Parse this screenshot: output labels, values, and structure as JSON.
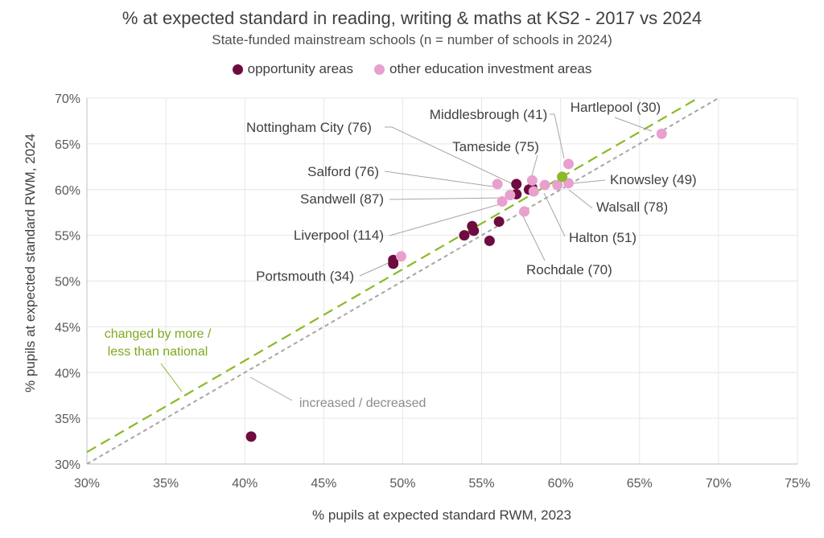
{
  "chart_data": {
    "type": "scatter",
    "title": "% at expected standard in reading, writing & maths at KS2 - 2017 vs 2024",
    "subtitle": "State-funded mainstream schools (n = number of schools in 2024)",
    "xlabel": "% pupils at expected standard RWM, 2023",
    "ylabel": "% pupils at expected standard RWM, 2024",
    "xlim": [
      30,
      75
    ],
    "ylim": [
      30,
      70
    ],
    "x_ticks": [
      30,
      35,
      40,
      45,
      50,
      55,
      60,
      65,
      70,
      75
    ],
    "y_ticks": [
      30,
      35,
      40,
      45,
      50,
      55,
      60,
      65,
      70
    ],
    "x_tick_labels": [
      "30%",
      "35%",
      "40%",
      "45%",
      "50%",
      "55%",
      "60%",
      "65%",
      "70%",
      "75%"
    ],
    "y_tick_labels": [
      "30%",
      "35%",
      "40%",
      "45%",
      "50%",
      "55%",
      "60%",
      "65%",
      "70%"
    ],
    "grid": true,
    "legend_position": "top",
    "series": [
      {
        "name": "opportunity areas",
        "color": "#6e0b3f",
        "points": [
          {
            "x": 57.2,
            "y": 60.6
          },
          {
            "x": 58.0,
            "y": 60.0
          },
          {
            "x": 58.2,
            "y": 60.2
          },
          {
            "x": 57.2,
            "y": 59.5
          },
          {
            "x": 56.1,
            "y": 56.5
          },
          {
            "x": 54.4,
            "y": 56.0
          },
          {
            "x": 54.5,
            "y": 55.5
          },
          {
            "x": 53.9,
            "y": 55.0
          },
          {
            "x": 55.5,
            "y": 54.4
          },
          {
            "x": 49.4,
            "y": 52.3
          },
          {
            "x": 49.4,
            "y": 51.9
          },
          {
            "x": 40.4,
            "y": 33.0
          }
        ]
      },
      {
        "name": "other education investment areas",
        "color": "#e8a0cf",
        "points": [
          {
            "x": 66.4,
            "y": 66.1
          },
          {
            "x": 60.5,
            "y": 62.8
          },
          {
            "x": 58.2,
            "y": 61.0
          },
          {
            "x": 56.0,
            "y": 60.6
          },
          {
            "x": 59.0,
            "y": 60.5
          },
          {
            "x": 59.8,
            "y": 60.5
          },
          {
            "x": 60.5,
            "y": 60.7
          },
          {
            "x": 58.3,
            "y": 59.8
          },
          {
            "x": 56.8,
            "y": 59.4
          },
          {
            "x": 56.3,
            "y": 58.7
          },
          {
            "x": 57.7,
            "y": 57.6
          },
          {
            "x": 49.9,
            "y": 52.7
          }
        ]
      },
      {
        "color": "#8ab929",
        "points": [
          {
            "x": 60.1,
            "y": 61.4
          }
        ]
      }
    ],
    "reference_lines": [
      {
        "label": "increased / decreased",
        "color": "#a6a6a6",
        "x1": 30,
        "y1": 30,
        "x2": 75,
        "y2": 75,
        "dash": "short"
      },
      {
        "label": "changed by more / less than national",
        "label_lines": [
          "changed by more /",
          "less than national"
        ],
        "color": "#8ab929",
        "x1": 30,
        "y1": 31.3,
        "x2": 75,
        "y2": 76.3,
        "dash": "long"
      }
    ],
    "annotations": [
      {
        "label": "Hartlepool (30)",
        "x": 66.4,
        "y": 66.1
      },
      {
        "label": "Middlesbrough (41)",
        "x": 60.5,
        "y": 62.8
      },
      {
        "label": "Nottingham City (76)",
        "x": 57.3,
        "y": 60.3
      },
      {
        "label": "Tameside (75)",
        "x": 58.2,
        "y": 61.0
      },
      {
        "label": "Knowsley (49)",
        "x": 60.5,
        "y": 60.7
      },
      {
        "label": "Salford (76)",
        "x": 56.0,
        "y": 60.6
      },
      {
        "label": "Sandwell (87)",
        "x": 56.8,
        "y": 59.4
      },
      {
        "label": "Walsall (78)",
        "x": 59.8,
        "y": 60.5
      },
      {
        "label": "Liverpool (114)",
        "x": 56.3,
        "y": 58.7
      },
      {
        "label": "Halton (51)",
        "x": 59.0,
        "y": 60.5
      },
      {
        "label": "Rochdale (70)",
        "x": 57.7,
        "y": 57.6
      },
      {
        "label": "Portsmouth (34)",
        "x": 49.9,
        "y": 52.7
      }
    ]
  }
}
